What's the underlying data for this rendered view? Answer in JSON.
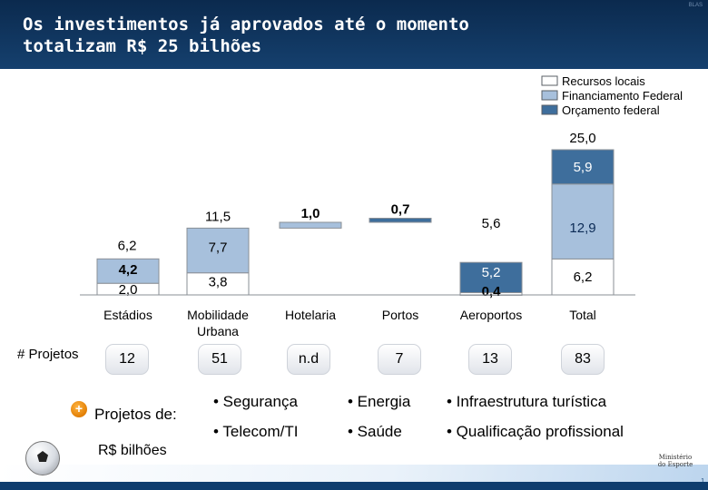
{
  "title": "Os investimentos já aprovados até o momento\ntotalizam R$ 25 bilhões",
  "corner_ref": "BLAS",
  "units_label": "R$ bilhões",
  "projects": {
    "label": "# Projetos",
    "values": [
      "12",
      "51",
      "n.d",
      "7",
      "13",
      "83"
    ]
  },
  "more_projects": {
    "plus": "+",
    "label": "Projetos de:",
    "items": [
      "• Segurança",
      "• Energia",
      "• Infraestrutura turística",
      "• Telecom/TI",
      "• Saúde",
      "• Qualificação profissional"
    ]
  },
  "logo_text": "Ministério\ndo Esporte",
  "page_number": "1",
  "colors": {
    "recursos_locais": "#ffffff",
    "financiamento_federal": "#a7c0dc",
    "orcamento_federal": "#3e6e9c",
    "header": "#0f3d6e"
  },
  "icons": [
    "plus-icon",
    "soccer-ball-icon"
  ],
  "chart_data": {
    "type": "bar",
    "subtype": "waterfall",
    "categories": [
      "Estádios",
      "Mobilidade\nUrbana",
      "Hotelaria",
      "Portos",
      "Aeroportos",
      "Total"
    ],
    "ylim": [
      0,
      25
    ],
    "legend_position": "top-right",
    "series": [
      {
        "name": "Recursos locais",
        "values": [
          2.0,
          3.8,
          null,
          null,
          0.4,
          6.2
        ]
      },
      {
        "name": "Financiamento Federal",
        "values": [
          4.2,
          7.7,
          1.0,
          null,
          null,
          12.9
        ]
      },
      {
        "name": "Orçamento federal",
        "values": [
          null,
          null,
          null,
          0.7,
          5.2,
          5.9
        ]
      }
    ],
    "segment_labels": [
      [
        "2,0",
        "4,2"
      ],
      [
        "3,8",
        "7,7"
      ],
      [
        "1,0"
      ],
      [
        "0,7"
      ],
      [
        "0,4",
        "5,2"
      ],
      [
        "6,2",
        "12,9",
        "5,9"
      ]
    ],
    "totals": [
      "6,2",
      "11,5",
      "",
      "",
      "5,6",
      "25,0"
    ]
  }
}
